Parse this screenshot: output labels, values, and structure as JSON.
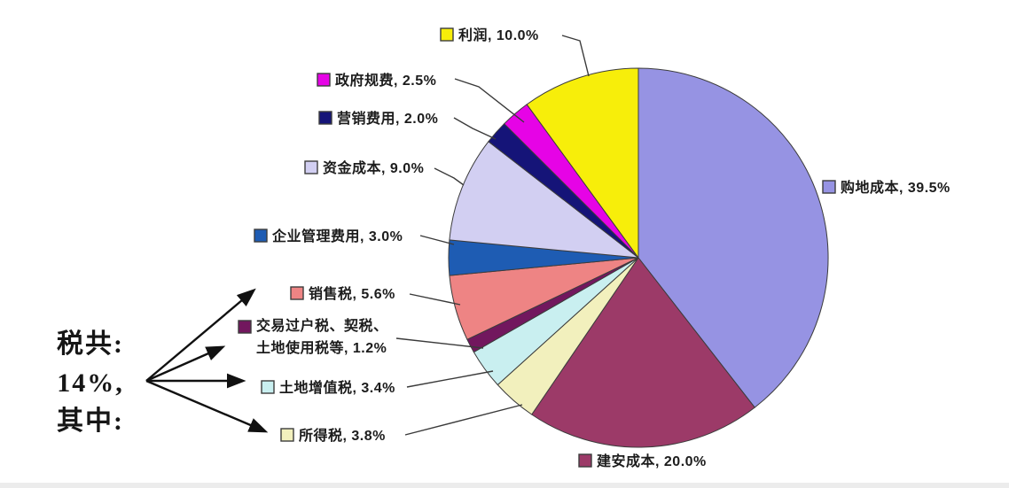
{
  "chart_data": {
    "type": "pie",
    "title": "",
    "units": "%",
    "start_angle_deg": 0,
    "direction": "clockwise",
    "legend_position": "callout-labels",
    "slices": [
      {
        "label": "购地成本",
        "value": 39.5,
        "color": "#9693e3",
        "display": "购地成本, 39.5%"
      },
      {
        "label": "建安成本",
        "value": 20.0,
        "color": "#9c3a68",
        "display": "建安成本, 20.0%"
      },
      {
        "label": "所得税",
        "value": 3.8,
        "color": "#f2f0bd",
        "display": "所得税, 3.8%"
      },
      {
        "label": "土地增值税",
        "value": 3.4,
        "color": "#c9eff0",
        "display": "土地增值税, 3.4%"
      },
      {
        "label": "交易过户税、契税、土地使用税等",
        "value": 1.2,
        "color": "#72175e",
        "display": "交易过户税、契税、",
        "display2": "土地使用税等, 1.2%"
      },
      {
        "label": "销售税",
        "value": 5.6,
        "color": "#ee8484",
        "display": "销售税, 5.6%"
      },
      {
        "label": "企业管理费用",
        "value": 3.0,
        "color": "#1e5cb3",
        "display": "企业管理费用, 3.0%"
      },
      {
        "label": "资金成本",
        "value": 9.0,
        "color": "#d2cff2",
        "display": "资金成本, 9.0%"
      },
      {
        "label": "营销费用",
        "value": 2.0,
        "color": "#151478",
        "display": "营销费用, 2.0%"
      },
      {
        "label": "政府规费",
        "value": 2.5,
        "color": "#e603e6",
        "display": "政府规费, 2.5%"
      },
      {
        "label": "利润",
        "value": 10.0,
        "color": "#f7ee0a",
        "display": "利润, 10.0%"
      }
    ],
    "annotation": {
      "line1": "税共:",
      "line2": "14%,",
      "line3": "其中:"
    }
  }
}
